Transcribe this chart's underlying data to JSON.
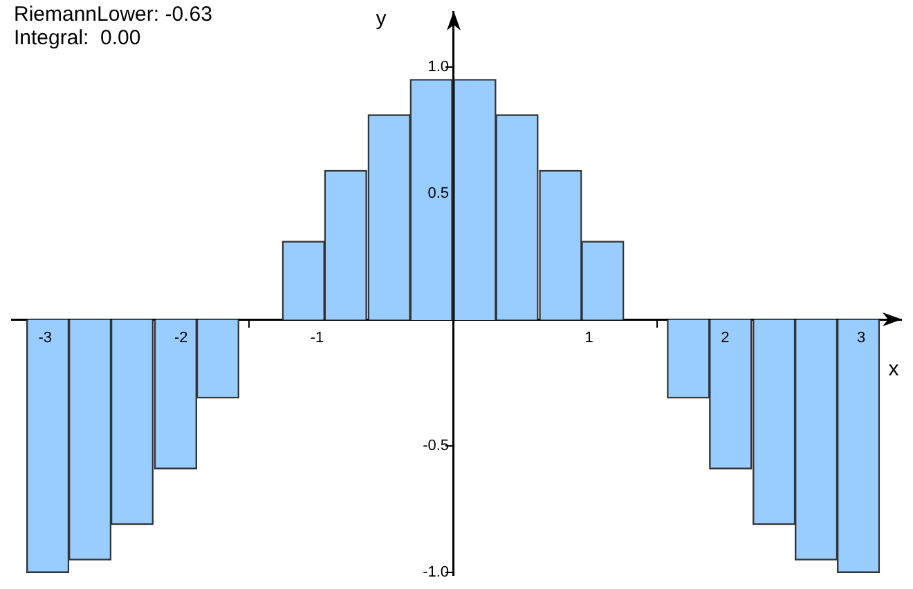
{
  "chart_data": {
    "type": "bar",
    "xlabel": "x",
    "ylabel": "y",
    "annotations": [
      "RiemannLower: -0.63",
      "Integral:  0.00"
    ],
    "x": [
      -2.98,
      -2.67,
      -2.36,
      -2.04,
      -1.73,
      -1.41,
      -1.1,
      -0.79,
      -0.47,
      -0.16,
      0.16,
      0.47,
      0.79,
      1.1,
      1.41,
      1.73,
      2.04,
      2.36,
      2.67,
      2.98
    ],
    "series": [
      {
        "color": "#99ccff",
        "values": [
          -1.0,
          -0.95,
          -0.81,
          -0.59,
          -0.31,
          0,
          0.31,
          0.59,
          0.81,
          0.95,
          0.95,
          0.81,
          0.59,
          0.31,
          0,
          -0.31,
          -0.59,
          -0.81,
          -0.95,
          -1.0
        ]
      }
    ],
    "xlim": [
      -3.25,
      3.3
    ],
    "ylim": [
      -1.01,
      1.22
    ],
    "xticks": [
      -3,
      -2,
      -1,
      1,
      2,
      3
    ],
    "yticks": [
      {
        "value": -1,
        "label": "-1.0"
      },
      -0.5,
      0.5,
      {
        "value": 1,
        "label": "1.0"
      }
    ],
    "grid": false,
    "legend": false
  }
}
